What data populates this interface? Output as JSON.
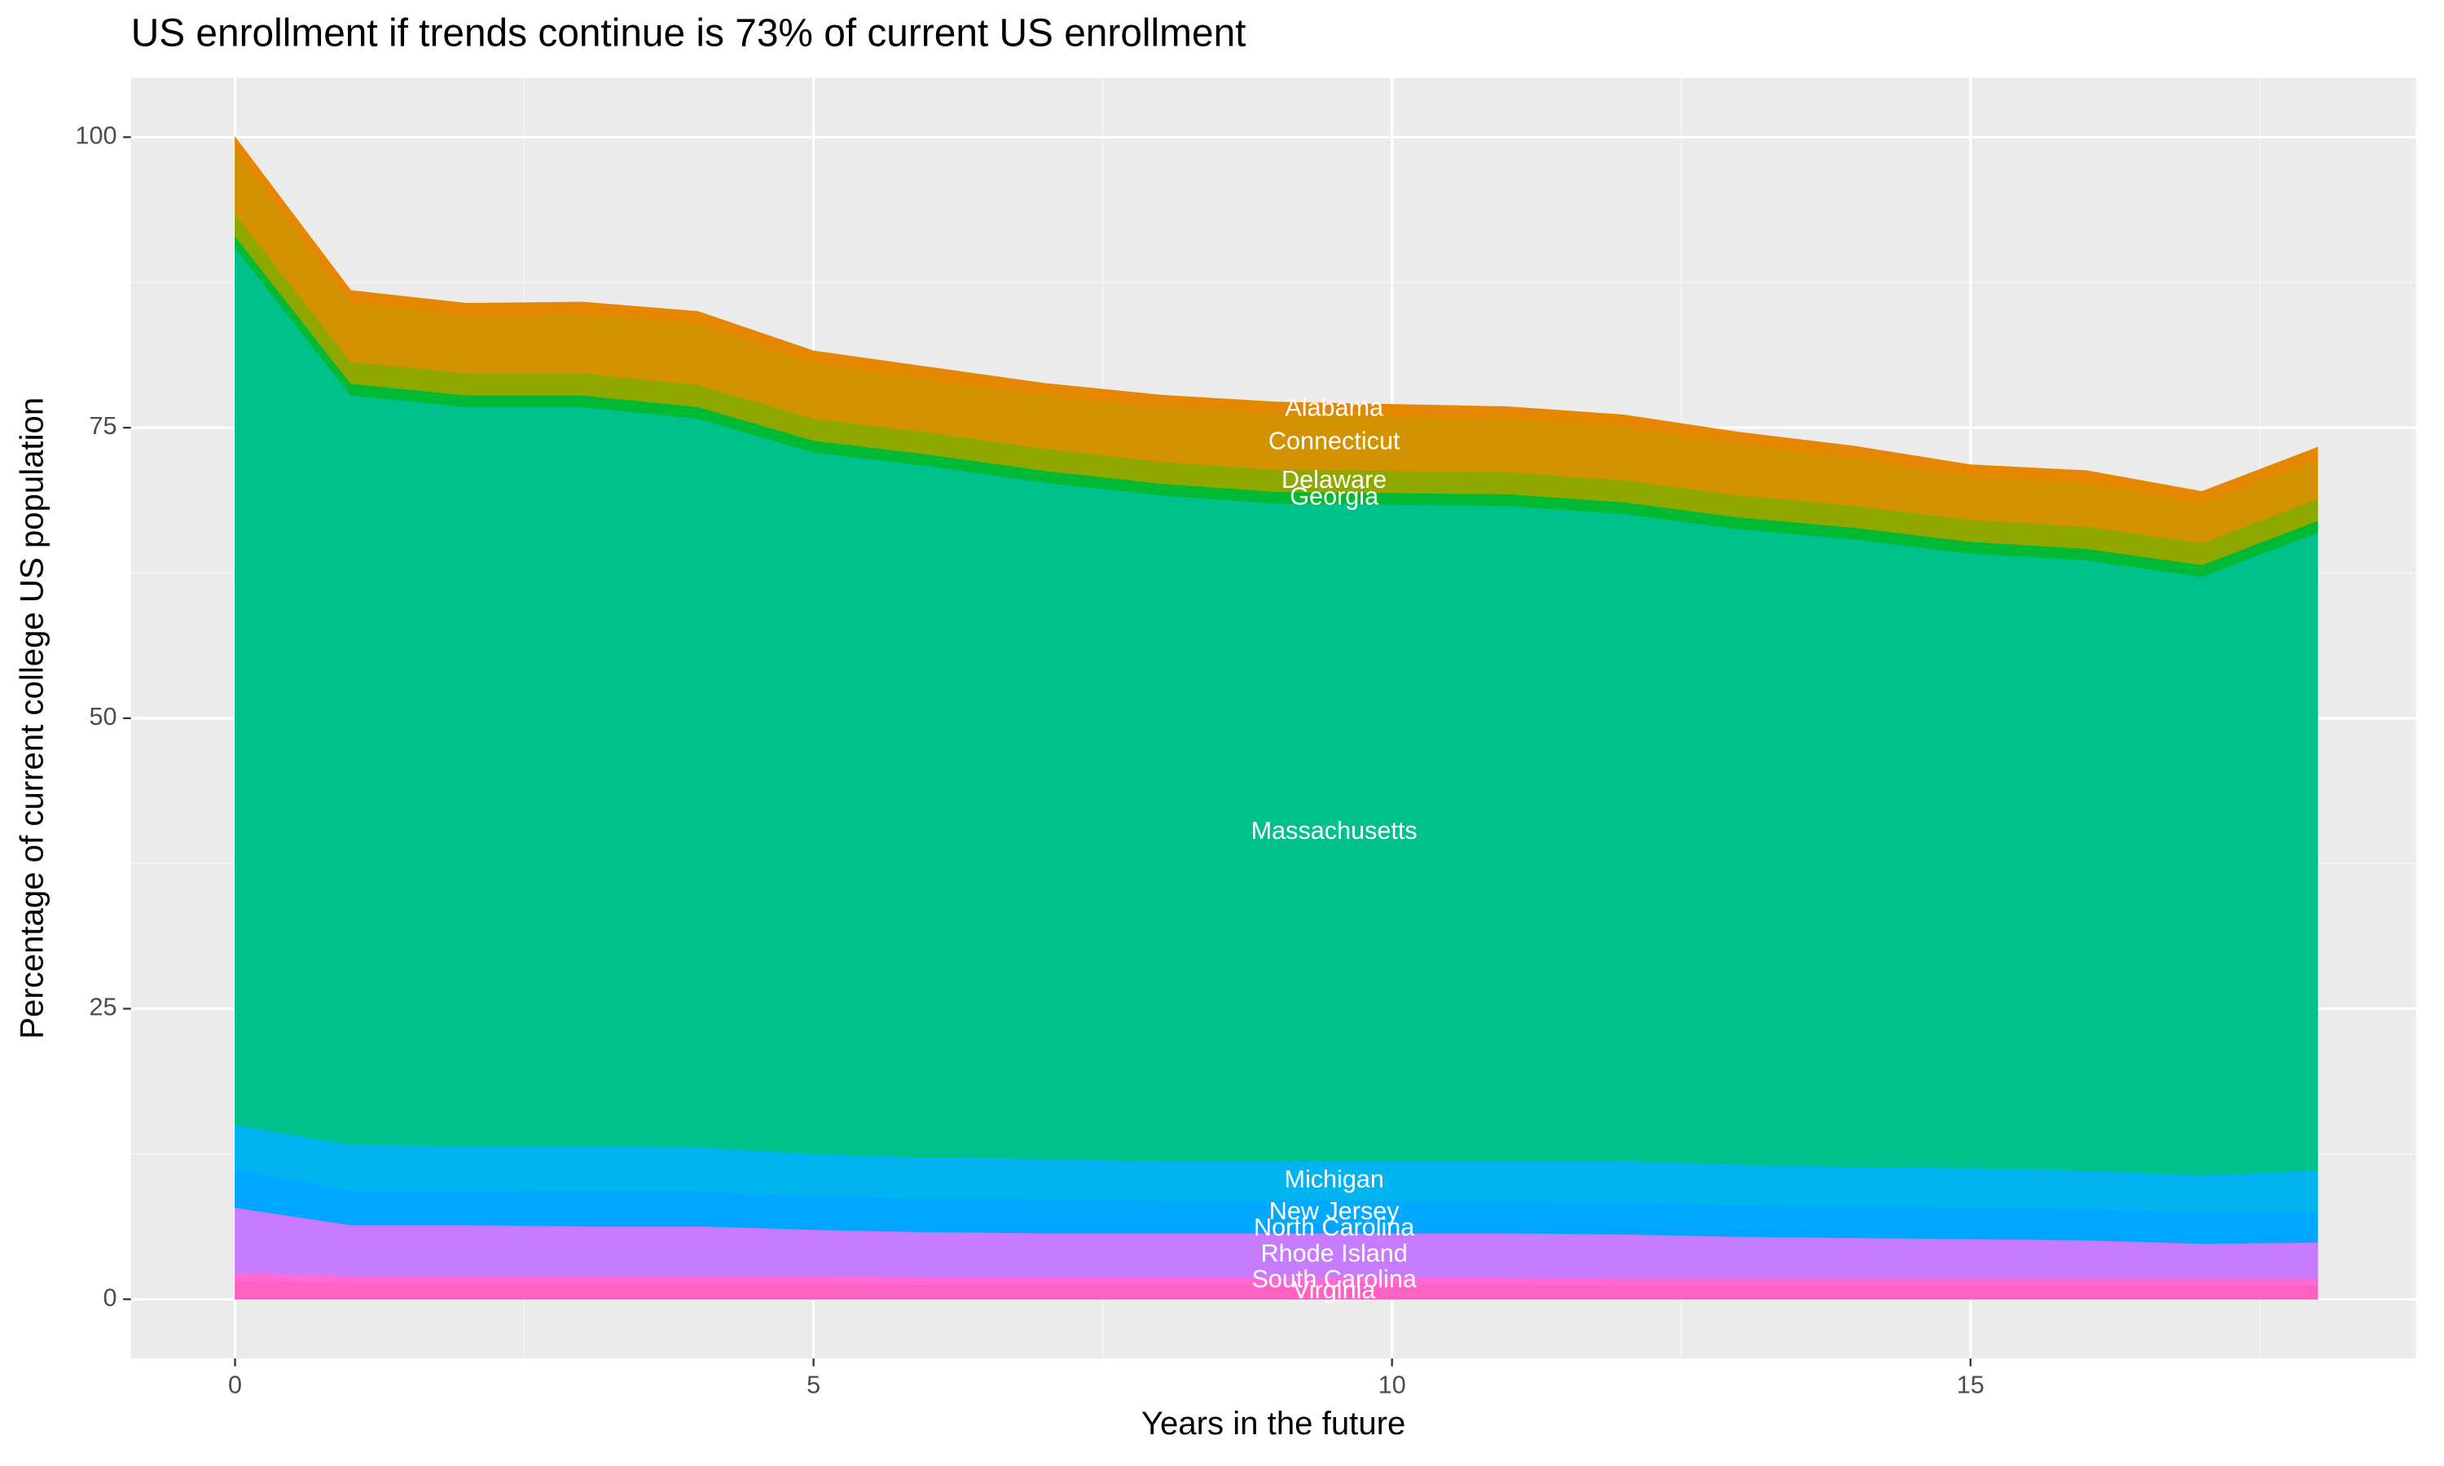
{
  "chart_data": {
    "type": "stacked_area",
    "title": "US enrollment if trends continue is 73% of current US enrollment",
    "x_label": "Years in the future",
    "y_label": "Percentage of current college US population",
    "x": [
      0,
      1,
      2,
      3,
      4,
      5,
      6,
      7,
      8,
      9,
      10,
      11,
      12,
      13,
      14,
      15,
      16,
      17,
      18
    ],
    "xlim": [
      -0.9,
      18.85
    ],
    "ylim": [
      -5.1,
      105.1
    ],
    "xticks": [
      0,
      5,
      10,
      15
    ],
    "yticks": [
      0,
      25,
      50,
      75,
      100
    ],
    "grid": true,
    "series": [
      {
        "name": "Virginia",
        "color": "#ff61c3",
        "values": [
          1.6,
          1.4,
          1.4,
          1.4,
          1.4,
          1.4,
          1.3,
          1.3,
          1.3,
          1.3,
          1.3,
          1.3,
          1.2,
          1.2,
          1.2,
          1.2,
          1.2,
          1.2,
          1.2
        ]
      },
      {
        "name": "South Carolina",
        "color": "#ff6ad5",
        "values": [
          0.7,
          0.6,
          0.6,
          0.6,
          0.6,
          0.6,
          0.6,
          0.6,
          0.6,
          0.6,
          0.6,
          0.6,
          0.6,
          0.6,
          0.6,
          0.6,
          0.6,
          0.6,
          0.6
        ]
      },
      {
        "name": "Rhode Island",
        "color": "#c77cff",
        "values": [
          5.6,
          4.4,
          4.4,
          4.3,
          4.3,
          4.0,
          3.9,
          3.8,
          3.8,
          3.8,
          3.8,
          3.8,
          3.8,
          3.6,
          3.5,
          3.4,
          3.3,
          3.0,
          3.1
        ]
      },
      {
        "name": "North Carolina",
        "color": "#00a5ff",
        "values": [
          0.8,
          0.7,
          0.7,
          0.7,
          0.7,
          0.7,
          0.7,
          0.7,
          0.7,
          0.7,
          0.7,
          0.7,
          0.7,
          0.7,
          0.7,
          0.7,
          0.7,
          0.7,
          0.7
        ]
      },
      {
        "name": "New Jersey",
        "color": "#00a9ff",
        "values": [
          2.5,
          2.3,
          2.3,
          2.3,
          2.3,
          2.2,
          2.2,
          2.2,
          2.1,
          2.1,
          2.1,
          2.1,
          2.1,
          2.0,
          2.0,
          2.0,
          2.0,
          2.0,
          2.0
        ]
      },
      {
        "name": "Michigan",
        "color": "#00b4ef",
        "values": [
          3.8,
          3.9,
          3.8,
          3.9,
          3.8,
          3.6,
          3.5,
          3.5,
          3.4,
          3.4,
          3.4,
          3.4,
          3.5,
          3.5,
          3.4,
          3.4,
          3.3,
          3.2,
          3.5
        ]
      },
      {
        "name": "Massachusetts",
        "color": "#00c08b",
        "values": [
          75.5,
          64.5,
          63.6,
          63.6,
          62.7,
          60.4,
          59.5,
          58.2,
          57.3,
          56.6,
          56.5,
          56.4,
          55.7,
          54.7,
          54.0,
          52.9,
          52.5,
          51.5,
          54.9
        ]
      },
      {
        "name": "Georgia",
        "color": "#00b934",
        "values": [
          1.0,
          1.0,
          1.0,
          1.0,
          1.0,
          1.0,
          1.0,
          1.0,
          1.0,
          1.0,
          1.0,
          1.0,
          1.0,
          1.0,
          1.0,
          1.0,
          1.0,
          1.0,
          1.0
        ]
      },
      {
        "name": "Delaware",
        "color": "#8fa800",
        "values": [
          1.9,
          1.9,
          1.9,
          1.9,
          1.9,
          1.9,
          1.9,
          1.9,
          1.9,
          1.9,
          1.9,
          1.9,
          1.9,
          1.9,
          1.9,
          1.9,
          1.9,
          1.9,
          1.9
        ]
      },
      {
        "name": "Connecticut",
        "color": "#d39200",
        "values": [
          5.6,
          5.1,
          5.0,
          5.1,
          5.3,
          4.8,
          4.6,
          4.6,
          4.7,
          4.8,
          4.7,
          4.6,
          4.6,
          4.4,
          4.1,
          3.7,
          3.8,
          3.4,
          3.4
        ]
      },
      {
        "name": "Alabama",
        "color": "#e58700",
        "values": [
          1.0,
          1.0,
          1.0,
          1.0,
          1.0,
          1.0,
          1.0,
          1.0,
          1.0,
          1.0,
          1.0,
          1.0,
          1.0,
          1.0,
          1.0,
          1.0,
          1.0,
          1.0,
          1.0
        ]
      }
    ]
  }
}
